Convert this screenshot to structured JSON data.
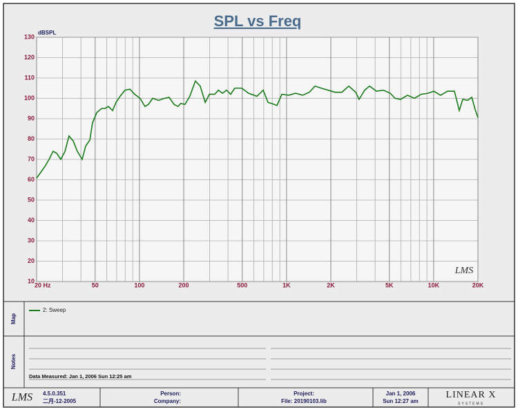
{
  "chart_data": {
    "type": "line",
    "title": "SPL vs Freq",
    "ylabel": "dBSPL",
    "x": [
      20,
      22,
      23,
      24.3,
      25.9,
      27.4,
      29.2,
      31.2,
      33.2,
      35.5,
      37.8,
      40.8,
      43.1,
      46,
      48,
      51.3,
      55.3,
      58.3,
      61.6,
      65.7,
      69.3,
      74.8,
      79.8,
      86.1,
      92.8,
      101,
      109,
      115,
      123,
      135,
      148,
      159,
      172,
      183,
      191,
      204,
      220,
      240,
      259,
      280,
      299,
      325,
      344,
      367,
      391,
      417,
      445,
      496,
      552,
      629,
      694,
      748,
      789,
      861,
      929,
      1035,
      1153,
      1285,
      1430,
      1560,
      1719,
      1915,
      2134,
      2377,
      2649,
      2951,
      3113,
      3397,
      3665,
      4083,
      4550,
      5069,
      5471,
      5960,
      6640,
      7400,
      8240,
      9180,
      10020,
      11150,
      12420,
      13840,
      14930,
      15770,
      17020,
      18160,
      19150,
      20000
    ],
    "series": [
      {
        "name": "2: Sweep",
        "color": "#1a7a1a",
        "values": [
          60.8,
          65,
          67,
          70,
          74,
          73,
          70,
          74,
          81.5,
          79,
          74,
          70,
          76.5,
          79.5,
          88,
          93,
          95,
          95,
          96,
          94,
          98,
          101.5,
          104,
          104.5,
          102,
          100,
          96,
          97,
          100,
          99,
          100,
          100.5,
          97,
          96,
          97.5,
          97,
          101,
          108.5,
          106,
          98,
          102,
          102,
          104,
          102.5,
          104,
          102,
          105,
          105,
          102.5,
          101,
          104,
          98,
          97.5,
          96.5,
          102,
          101.5,
          102.5,
          101.5,
          103,
          106,
          105,
          104,
          103,
          103,
          106,
          103,
          99.5,
          104,
          106,
          103.5,
          104,
          102.5,
          100,
          99.5,
          101.5,
          100,
          102,
          102.5,
          103.5,
          101.5,
          103.5,
          103.5,
          94,
          99.5,
          99,
          100.5,
          94.5,
          90.5
        ]
      }
    ],
    "xscale": "log",
    "xlim": [
      20,
      20000
    ],
    "ylim": [
      10,
      130
    ],
    "xticks": [
      {
        "value": 20,
        "label": "20  Hz"
      },
      50,
      100,
      200,
      500,
      {
        "value": 1000,
        "label": "1K"
      },
      {
        "value": 2000,
        "label": "2K"
      },
      {
        "value": 5000,
        "label": "5K"
      },
      {
        "value": 10000,
        "label": "10K"
      },
      {
        "value": 20000,
        "label": "20K"
      }
    ],
    "xminorticks": [
      30,
      40,
      60,
      70,
      80,
      90,
      300,
      400,
      600,
      700,
      800,
      900,
      3000,
      4000,
      6000,
      7000,
      8000,
      9000
    ],
    "yticks": [
      10,
      20,
      30,
      40,
      50,
      60,
      70,
      80,
      90,
      100,
      110,
      120,
      130
    ],
    "grid": true,
    "watermark": "LMS"
  },
  "map": {
    "label": "Map"
  },
  "notes": {
    "label": "Notes",
    "measured": "Data Measured: Jan  1, 2006  Sun 12:25 am"
  },
  "footer": {
    "logo": "LMS",
    "version": "4.5.0.351",
    "build_date": "二月-12-2005",
    "person": "Person:",
    "company": "Company:",
    "project": "Project:",
    "file": "File: 20190103.lib",
    "date": "Jan  1, 2006",
    "time": "Sun 12:27 am",
    "brand": "LINEAR X",
    "brand_sub": "SYSTEMS"
  }
}
